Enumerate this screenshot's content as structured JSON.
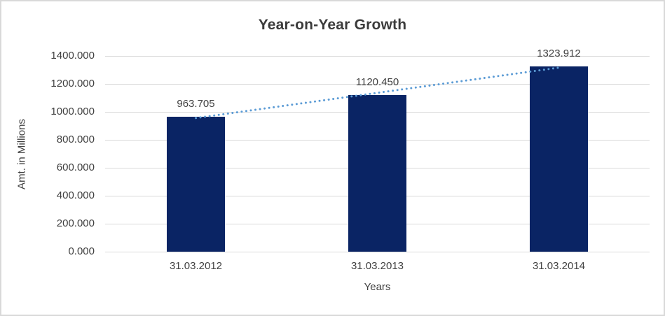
{
  "chart_data": {
    "type": "bar",
    "title": "Year-on-Year Growth",
    "categories": [
      "31.03.2012",
      "31.03.2013",
      "31.03.2014"
    ],
    "values": [
      963.705,
      1120.45,
      1323.912
    ],
    "data_labels": [
      "963.705",
      "1120.450",
      "1323.912"
    ],
    "xlabel": "Years",
    "ylabel": "Amt. in Millions",
    "ylim": [
      0,
      1400
    ],
    "y_tick_step": 200,
    "y_tick_labels": [
      "0.000",
      "200.000",
      "400.000",
      "600.000",
      "800.000",
      "1000.000",
      "1200.000",
      "1400.000"
    ],
    "grid": true,
    "legend": "none",
    "bar_color": "#0a2464",
    "gridline_color": "#d9d9d9",
    "text_color": "#404040",
    "trendline": {
      "style": "dotted",
      "color": "#5b9bd5"
    }
  }
}
